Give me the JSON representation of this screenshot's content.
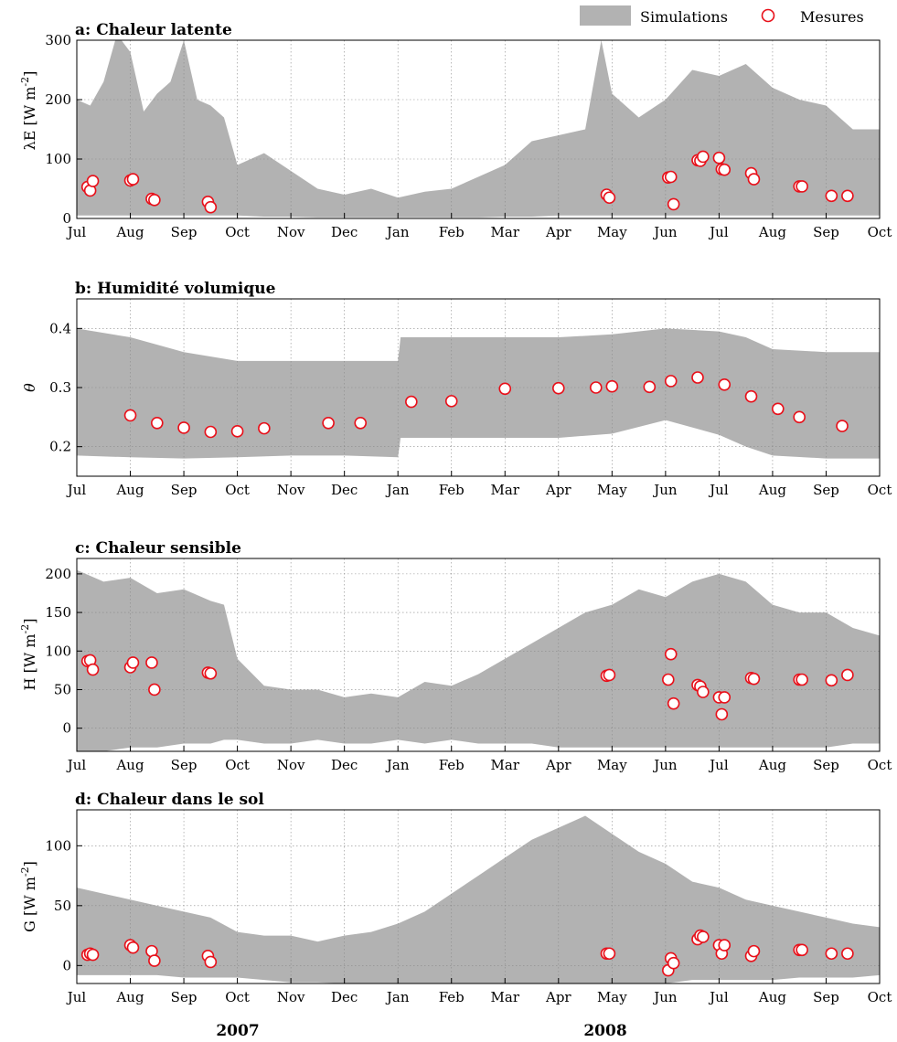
{
  "legend": {
    "band_label": "Simulations",
    "marker_label": "Mesures",
    "band_color": "#b2b2b2",
    "marker_color": "#e8101a"
  },
  "months": [
    "Jul",
    "Aug",
    "Sep",
    "Oct",
    "Nov",
    "Dec",
    "Jan",
    "Feb",
    "Mar",
    "Apr",
    "May",
    "Jun",
    "Jul",
    "Aug",
    "Sep",
    "Oct"
  ],
  "years": [
    "2007",
    "2008"
  ],
  "chart_data": [
    {
      "type": "area",
      "title": "a: Chaleur latente",
      "ylabel": "λE [W m-2]",
      "ylim": [
        0,
        300
      ],
      "yticks": [
        0,
        100,
        200,
        300
      ],
      "grid": true,
      "x_unit": "months since 1 Jul 2007",
      "band": {
        "x": [
          0,
          0.25,
          0.5,
          0.75,
          1,
          1.25,
          1.5,
          1.75,
          2,
          2.25,
          2.5,
          2.75,
          3,
          3.5,
          4,
          4.5,
          5,
          5.5,
          6,
          6.5,
          7,
          7.5,
          8,
          8.5,
          9,
          9.5,
          9.8,
          10,
          10.5,
          11,
          11.5,
          12,
          12.5,
          13,
          13.5,
          14,
          14.5,
          15
        ],
        "low": [
          5,
          5,
          5,
          5,
          5,
          5,
          5,
          5,
          5,
          5,
          5,
          5,
          5,
          3,
          3,
          2,
          2,
          2,
          2,
          2,
          2,
          2,
          3,
          3,
          5,
          5,
          5,
          5,
          5,
          5,
          5,
          5,
          5,
          5,
          5,
          5,
          5,
          5
        ],
        "high": [
          200,
          190,
          230,
          310,
          280,
          180,
          210,
          230,
          300,
          200,
          190,
          170,
          90,
          110,
          80,
          50,
          40,
          50,
          35,
          45,
          50,
          70,
          90,
          130,
          140,
          150,
          300,
          210,
          170,
          200,
          250,
          240,
          260,
          220,
          200,
          190,
          150,
          150
        ]
      },
      "measurements": {
        "x": [
          0.2,
          0.25,
          0.3,
          1.0,
          1.05,
          1.4,
          1.45,
          2.45,
          2.5,
          9.9,
          9.95,
          11.05,
          11.1,
          11.15,
          11.6,
          11.65,
          11.7,
          12.0,
          12.05,
          12.1,
          12.6,
          12.65,
          13.5,
          13.55,
          14.1,
          14.4
        ],
        "y": [
          53,
          47,
          63,
          64,
          66,
          33,
          31,
          28,
          19,
          40,
          35,
          69,
          70,
          24,
          98,
          97,
          104,
          102,
          83,
          82,
          76,
          66,
          54,
          54,
          38,
          38
        ]
      }
    },
    {
      "type": "area",
      "title": "b: Humidité volumique",
      "ylabel": "θ",
      "ylim": [
        0.15,
        0.45
      ],
      "yticks": [
        0.2,
        0.3,
        0.4
      ],
      "grid": true,
      "x_unit": "months since 1 Jul 2007",
      "band": {
        "x": [
          0,
          1,
          2,
          3,
          4,
          5,
          6,
          6.05,
          7,
          8,
          9,
          10,
          11,
          12,
          12.5,
          13,
          14,
          15
        ],
        "low": [
          0.185,
          0.182,
          0.18,
          0.182,
          0.185,
          0.185,
          0.182,
          0.215,
          0.215,
          0.215,
          0.215,
          0.222,
          0.245,
          0.22,
          0.2,
          0.185,
          0.18,
          0.18
        ],
        "high": [
          0.4,
          0.385,
          0.36,
          0.345,
          0.345,
          0.345,
          0.345,
          0.385,
          0.385,
          0.385,
          0.385,
          0.39,
          0.4,
          0.395,
          0.385,
          0.365,
          0.36,
          0.36
        ]
      },
      "measurements": {
        "x": [
          1.0,
          1.5,
          2.0,
          2.5,
          3.0,
          3.5,
          4.7,
          5.3,
          6.25,
          7.0,
          8.0,
          9.0,
          9.7,
          10.0,
          10.7,
          11.1,
          11.6,
          12.1,
          12.6,
          13.1,
          13.5,
          14.3
        ],
        "y": [
          0.253,
          0.24,
          0.232,
          0.225,
          0.226,
          0.231,
          0.24,
          0.24,
          0.276,
          0.277,
          0.298,
          0.299,
          0.3,
          0.302,
          0.301,
          0.311,
          0.317,
          0.305,
          0.285,
          0.264,
          0.25,
          0.235
        ]
      }
    },
    {
      "type": "area",
      "title": "c: Chaleur sensible",
      "ylabel": "H [W m-2]",
      "ylim": [
        -30,
        220
      ],
      "yticks": [
        0,
        50,
        100,
        150,
        200
      ],
      "grid": true,
      "x_unit": "months since 1 Jul 2007",
      "band": {
        "x": [
          0,
          0.5,
          1,
          1.5,
          2,
          2.5,
          2.75,
          3,
          3.5,
          4,
          4.5,
          5,
          5.5,
          6,
          6.5,
          7,
          7.5,
          8,
          8.5,
          9,
          9.5,
          10,
          10.5,
          11,
          11.5,
          12,
          12.5,
          13,
          13.5,
          14,
          14.5,
          15
        ],
        "low": [
          -30,
          -30,
          -25,
          -25,
          -20,
          -20,
          -15,
          -15,
          -20,
          -20,
          -15,
          -20,
          -20,
          -15,
          -20,
          -15,
          -20,
          -20,
          -20,
          -25,
          -25,
          -25,
          -25,
          -25,
          -25,
          -25,
          -25,
          -25,
          -25,
          -25,
          -20,
          -20
        ],
        "high": [
          205,
          190,
          195,
          175,
          180,
          165,
          160,
          90,
          55,
          50,
          50,
          40,
          45,
          40,
          60,
          55,
          70,
          90,
          110,
          130,
          150,
          160,
          180,
          170,
          190,
          200,
          190,
          160,
          150,
          150,
          130,
          120
        ]
      },
      "measurements": {
        "x": [
          0.2,
          0.25,
          0.3,
          1.0,
          1.05,
          1.4,
          1.45,
          2.45,
          2.5,
          9.9,
          9.95,
          11.05,
          11.1,
          11.15,
          11.6,
          11.65,
          11.7,
          12.0,
          12.05,
          12.1,
          12.6,
          12.65,
          13.5,
          13.55,
          14.1,
          14.4
        ],
        "y": [
          87,
          88,
          76,
          79,
          85,
          85,
          50,
          72,
          71,
          68,
          69,
          63,
          96,
          32,
          56,
          54,
          47,
          40,
          18,
          40,
          65,
          64,
          63,
          63,
          62,
          69
        ]
      }
    },
    {
      "type": "area",
      "title": "d: Chaleur dans le sol",
      "ylabel": "G [W m-2]",
      "ylim": [
        -15,
        130
      ],
      "yticks": [
        0,
        50,
        100
      ],
      "grid": true,
      "x_unit": "months since 1 Jul 2007",
      "band": {
        "x": [
          0,
          0.5,
          1,
          1.5,
          2,
          2.5,
          3,
          3.5,
          4,
          4.5,
          5,
          5.5,
          6,
          6.5,
          7,
          7.5,
          8,
          8.5,
          9,
          9.5,
          10,
          10.5,
          11,
          11.5,
          12,
          12.5,
          13,
          13.5,
          14,
          14.5,
          15
        ],
        "low": [
          -8,
          -8,
          -8,
          -8,
          -10,
          -10,
          -10,
          -12,
          -14,
          -14,
          -15,
          -15,
          -15,
          -15,
          -15,
          -15,
          -15,
          -15,
          -15,
          -15,
          -15,
          -15,
          -15,
          -12,
          -12,
          -12,
          -12,
          -10,
          -10,
          -10,
          -8
        ],
        "high": [
          65,
          60,
          55,
          50,
          45,
          40,
          28,
          25,
          25,
          20,
          25,
          28,
          35,
          45,
          60,
          75,
          90,
          105,
          115,
          125,
          110,
          95,
          85,
          70,
          65,
          55,
          50,
          45,
          40,
          35,
          32
        ]
      },
      "measurements": {
        "x": [
          0.2,
          0.25,
          0.3,
          1.0,
          1.05,
          1.4,
          1.45,
          2.45,
          2.5,
          9.9,
          9.95,
          11.05,
          11.1,
          11.15,
          11.6,
          11.65,
          11.7,
          12.0,
          12.05,
          12.1,
          12.6,
          12.65,
          13.5,
          13.55,
          14.1,
          14.4
        ],
        "y": [
          9,
          10,
          9,
          17,
          15,
          12,
          4,
          8,
          3,
          10,
          10,
          -4,
          6,
          2,
          22,
          25,
          24,
          17,
          10,
          17,
          8,
          12,
          13,
          13,
          10,
          10
        ]
      }
    }
  ]
}
